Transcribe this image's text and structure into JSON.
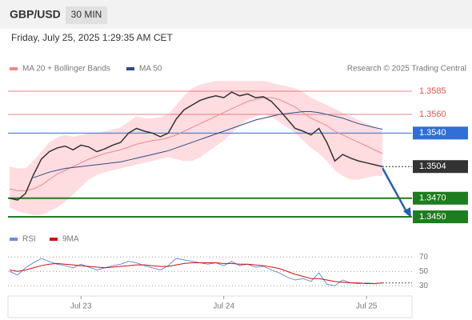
{
  "chart_data": {
    "type": "line",
    "title": "GBP/USD",
    "timeframe": "30 MIN",
    "subtitle": "Friday, July 25, 2025 1:29:35 AM CET",
    "source": "Research © 2025 Trading Central",
    "categories": [
      null,
      null,
      null,
      null,
      null,
      null,
      null,
      null,
      null,
      "Jul 23",
      null,
      null,
      null,
      null,
      null,
      null,
      null,
      null,
      null,
      null,
      null,
      null,
      null,
      null,
      null,
      null,
      null,
      "Jul 24",
      null,
      null,
      null,
      null,
      null,
      null,
      null,
      null,
      null,
      null,
      null,
      null,
      null,
      null,
      null,
      null,
      null,
      "Jul 25",
      null,
      null
    ],
    "series": [
      {
        "color": "#333333",
        "values": [
          1.347,
          1.3468,
          1.3475,
          1.3495,
          1.3512,
          1.352,
          1.3524,
          1.3526,
          1.3522,
          1.3527,
          1.3525,
          1.352,
          1.3523,
          1.3527,
          1.353,
          1.354,
          1.3545,
          1.3542,
          1.354,
          1.3536,
          1.354,
          1.3555,
          1.3565,
          1.357,
          1.3575,
          1.3578,
          1.358,
          1.3578,
          1.3584,
          1.358,
          1.3582,
          1.3578,
          1.3579,
          1.3574,
          1.3565,
          1.3555,
          1.3545,
          1.3542,
          1.3538,
          1.3545,
          1.353,
          1.351,
          1.3517,
          1.3513,
          1.351,
          1.3508,
          1.3506,
          1.3504
        ]
      },
      {
        "name": "MA 20 + Bollinger Bands",
        "color": "#ee8888",
        "band_color": "#ffc4cc",
        "values": [
          1.348,
          1.3478,
          1.3478,
          1.348,
          1.3484,
          1.349,
          1.3496,
          1.35,
          1.3504,
          1.3508,
          1.3512,
          1.3515,
          1.3518,
          1.352,
          1.3522,
          1.3525,
          1.3528,
          1.353,
          1.3532,
          1.3533,
          1.3535,
          1.3538,
          1.3542,
          1.3546,
          1.355,
          1.3554,
          1.3558,
          1.3562,
          1.3566,
          1.357,
          1.3574,
          1.3576,
          1.3578,
          1.3578,
          1.3576,
          1.3572,
          1.3568,
          1.3562,
          1.3556,
          1.3552,
          1.3548,
          1.3542,
          1.3538,
          1.3534,
          1.353,
          1.3526,
          1.3522,
          1.3518
        ],
        "upper": [
          1.3504,
          1.3502,
          1.3502,
          1.351,
          1.352,
          1.353,
          1.3535,
          1.3538,
          1.3536,
          1.3538,
          1.354,
          1.354,
          1.3542,
          1.3544,
          1.3546,
          1.3552,
          1.3558,
          1.3556,
          1.3556,
          1.3557,
          1.356,
          1.357,
          1.358,
          1.3588,
          1.3592,
          1.3594,
          1.3596,
          1.3596,
          1.3596,
          1.3596,
          1.3596,
          1.3596,
          1.3596,
          1.3594,
          1.3592,
          1.359,
          1.3588,
          1.3584,
          1.3578,
          1.3574,
          1.357,
          1.3566,
          1.3562,
          1.3558,
          1.3554,
          1.355,
          1.3546,
          1.3542
        ],
        "lower": [
          1.346,
          1.3456,
          1.3454,
          1.3452,
          1.3452,
          1.3456,
          1.346,
          1.3466,
          1.3474,
          1.3482,
          1.349,
          1.3495,
          1.3498,
          1.35,
          1.3502,
          1.3504,
          1.3506,
          1.3508,
          1.351,
          1.3512,
          1.3514,
          1.3512,
          1.351,
          1.351,
          1.3514,
          1.352,
          1.3526,
          1.3532,
          1.354,
          1.3548,
          1.3554,
          1.3558,
          1.356,
          1.3558,
          1.3552,
          1.3546,
          1.354,
          1.3532,
          1.3524,
          1.3518,
          1.351,
          1.35,
          1.3494,
          1.349,
          1.349,
          1.3492,
          1.3494,
          1.3494
        ]
      },
      {
        "name": "MA 50",
        "color": "#2f4a8a",
        "values": [
          null,
          null,
          null,
          1.3492,
          1.3495,
          1.3498,
          1.35,
          1.3502,
          1.3503,
          1.3504,
          1.3505,
          1.3506,
          1.3507,
          1.3508,
          1.3509,
          1.3511,
          1.3513,
          1.3515,
          1.3517,
          1.3519,
          1.3521,
          1.3524,
          1.3527,
          1.353,
          1.3533,
          1.3536,
          1.3539,
          1.3542,
          1.3545,
          1.3548,
          1.3551,
          1.3554,
          1.3556,
          1.3558,
          1.356,
          1.3561,
          1.3562,
          1.3563,
          1.3563,
          1.3562,
          1.356,
          1.3558,
          1.3556,
          1.3553,
          1.355,
          1.3548,
          1.3546,
          1.3544
        ]
      }
    ],
    "ylim": [
      1.3438,
      1.3597
    ],
    "yticks": [
      1.3585,
      {
        "value": 1.356,
        "label": "1.3560"
      },
      {
        "value": 1.354,
        "label": "1.3540"
      },
      1.3504,
      {
        "value": 1.347,
        "label": "1.3470"
      },
      {
        "value": 1.345,
        "label": "1.3450"
      }
    ],
    "ytick_colors": [
      "#e05555",
      "#e05555",
      "#2f6fd6",
      "#333333",
      "#1e7d1e",
      "#1e7d1e"
    ],
    "ytick_styles": [
      "text",
      "text",
      "box",
      "box",
      "box",
      "box"
    ],
    "rsi": {
      "ylim": [
        18,
        77
      ],
      "yticks": [
        70,
        50,
        30
      ],
      "series": [
        {
          "name": "RSI",
          "color": "#6a8fd8",
          "values": [
            50,
            45,
            55,
            62,
            68,
            64,
            60,
            58,
            55,
            60,
            56,
            52,
            55,
            58,
            60,
            64,
            62,
            58,
            55,
            52,
            58,
            68,
            66,
            64,
            62,
            60,
            62,
            58,
            64,
            58,
            60,
            56,
            57,
            52,
            48,
            42,
            38,
            40,
            36,
            48,
            32,
            30,
            38,
            34,
            33,
            34,
            33,
            34
          ]
        },
        {
          "name": "9MA",
          "color": "#cc1111",
          "values": [
            52,
            50,
            52,
            55,
            58,
            60,
            61,
            60,
            59,
            58,
            57,
            56,
            55,
            56,
            57,
            58,
            59,
            59,
            58,
            57,
            57,
            59,
            61,
            62,
            62,
            62,
            62,
            61,
            61,
            60,
            60,
            59,
            58,
            56,
            54,
            50,
            46,
            43,
            40,
            40,
            38,
            36,
            35,
            34,
            34,
            33,
            33,
            34
          ]
        }
      ]
    }
  }
}
